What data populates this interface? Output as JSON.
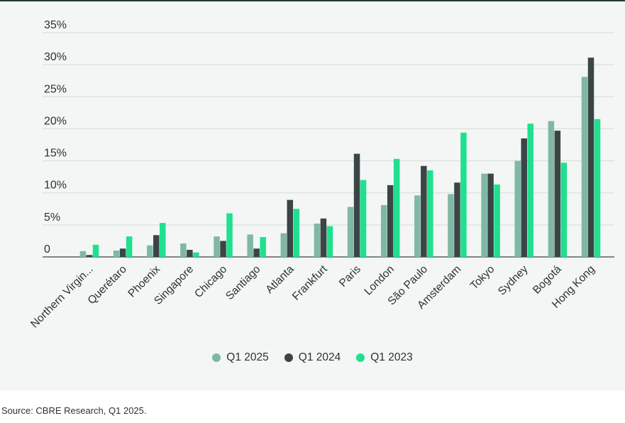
{
  "chart_data": {
    "type": "bar",
    "categories": [
      "Northern Virgin...",
      "Querétaro",
      "Phoenix",
      "Singapore",
      "Chicago",
      "Santiago",
      "Atlanta",
      "Frankfurt",
      "Paris",
      "London",
      "São Paulo",
      "Amsterdam",
      "Tokyo",
      "Sydney",
      "Bogotá",
      "Hong Kong"
    ],
    "series": [
      {
        "name": "Q1 2025",
        "color": "#7fb8a5",
        "values": [
          0.9,
          1.0,
          1.8,
          2.1,
          3.2,
          3.5,
          3.7,
          5.2,
          7.8,
          8.1,
          9.6,
          9.8,
          13.0,
          15.0,
          21.2,
          28.1
        ]
      },
      {
        "name": "Q1 2024",
        "color": "#3a4545",
        "values": [
          0.3,
          1.3,
          3.4,
          1.1,
          2.5,
          1.3,
          8.9,
          6.0,
          16.1,
          11.2,
          14.2,
          11.6,
          13.0,
          18.5,
          19.7,
          31.1
        ]
      },
      {
        "name": "Q1 2023",
        "color": "#1fe08f",
        "values": [
          1.9,
          3.2,
          5.3,
          0.7,
          6.8,
          3.1,
          7.5,
          4.8,
          12.0,
          15.3,
          13.5,
          19.4,
          11.3,
          20.8,
          14.7,
          21.5
        ]
      }
    ],
    "yticks": [
      "35%",
      "30%",
      "25%",
      "20%",
      "15%",
      "10%",
      "5%",
      "0"
    ],
    "ytick_values": [
      35,
      30,
      25,
      20,
      15,
      10,
      5,
      0
    ],
    "ylim": [
      0,
      35
    ],
    "grid": true,
    "legend_position": "bottom-center",
    "title": "",
    "xlabel": "",
    "ylabel": ""
  },
  "source": "Source: CBRE Research, Q1 2025."
}
